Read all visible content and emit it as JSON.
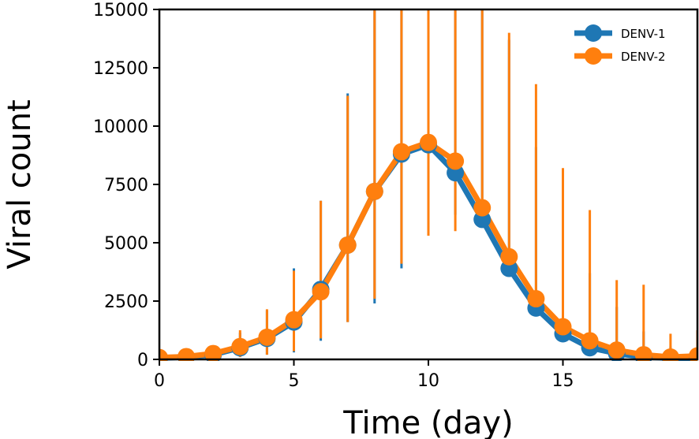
{
  "chart_data": {
    "type": "line",
    "xlabel": "Time (day)",
    "ylabel": "Viral count",
    "xlim": [
      0,
      20
    ],
    "ylim": [
      0,
      15000
    ],
    "xticks": [
      0,
      5,
      10,
      15
    ],
    "yticks": [
      0,
      2500,
      5000,
      7500,
      10000,
      12500,
      15000
    ],
    "grid": false,
    "legend_position": "top-right",
    "x": [
      0,
      1,
      2,
      3,
      4,
      5,
      6,
      7,
      8,
      9,
      10,
      11,
      12,
      13,
      14,
      15,
      16,
      17,
      18,
      19,
      20
    ],
    "series": [
      {
        "name": "DENV-1",
        "color": "#1f77b4",
        "values": [
          50,
          100,
          200,
          500,
          900,
          1600,
          3000,
          4900,
          7200,
          8800,
          9200,
          8000,
          6000,
          3900,
          2200,
          1100,
          500,
          250,
          100,
          50,
          20
        ],
        "error_low": [
          50,
          100,
          150,
          400,
          700,
          1300,
          2200,
          3300,
          4800,
          4900,
          3800,
          1800,
          0,
          0,
          0,
          0,
          0,
          0,
          0,
          0,
          0
        ],
        "error_high": [
          80,
          150,
          300,
          650,
          1200,
          2300,
          3800,
          6500,
          9600,
          12600,
          14500,
          14400,
          12600,
          9800,
          6900,
          4700,
          3200,
          2000,
          1100,
          500,
          100
        ]
      },
      {
        "name": "DENV-2",
        "color": "#ff7f0e",
        "values": [
          80,
          120,
          250,
          550,
          950,
          1700,
          2900,
          4900,
          7200,
          8900,
          9300,
          8500,
          6500,
          4400,
          2600,
          1400,
          800,
          400,
          200,
          100,
          150
        ],
        "error_low": [
          60,
          100,
          200,
          450,
          750,
          1350,
          2000,
          3300,
          4600,
          4800,
          4000,
          3000,
          0,
          0,
          0,
          0,
          0,
          0,
          0,
          0,
          0
        ],
        "error_high": [
          100,
          180,
          320,
          700,
          1200,
          2100,
          3900,
          6400,
          9600,
          12700,
          14600,
          13800,
          13600,
          9600,
          9200,
          6800,
          5600,
          3000,
          3000,
          1000,
          1100
        ]
      }
    ]
  }
}
